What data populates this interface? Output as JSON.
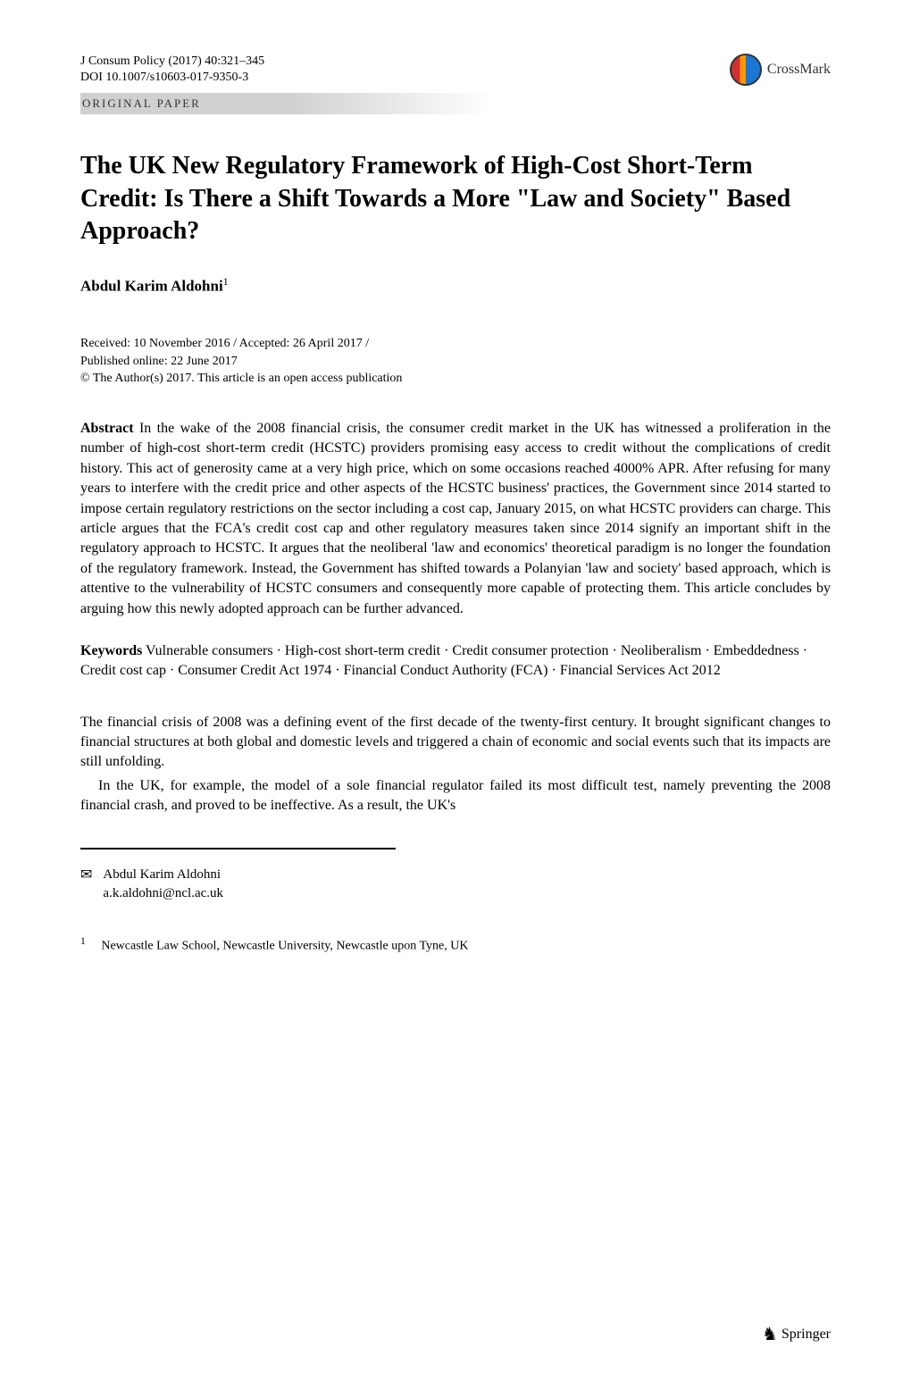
{
  "header": {
    "journal_line": "J Consum Policy (2017) 40:321–345",
    "doi_line": "DOI 10.1007/s10603-017-9350-3",
    "crossmark_label": "CrossMark"
  },
  "section_label": "ORIGINAL PAPER",
  "title": "The UK New Regulatory Framework of High-Cost Short-Term Credit: Is There a Shift Towards a More \"Law and Society\" Based Approach?",
  "author": {
    "name": "Abdul Karim Aldohni",
    "sup": "1"
  },
  "dates": {
    "received_accepted": "Received: 10 November 2016 / Accepted: 26 April 2017 /",
    "published": "Published online: 22 June 2017",
    "copyright": "© The Author(s) 2017. This article is an open access publication"
  },
  "abstract": {
    "label": "Abstract",
    "text": "In the wake of the 2008 financial crisis, the consumer credit market in the UK has witnessed a proliferation in the number of high-cost short-term credit (HCSTC) providers promising easy access to credit without the complications of credit history. This act of generosity came at a very high price, which on some occasions reached 4000% APR. After refusing for many years to interfere with the credit price and other aspects of the HCSTC business' practices, the Government since 2014 started to impose certain regulatory restrictions on the sector including a cost cap, January 2015, on what HCSTC providers can charge. This article argues that the FCA's credit cost cap and other regulatory measures taken since 2014 signify an important shift in the regulatory approach to HCSTC. It argues that the neoliberal 'law and economics' theoretical paradigm is no longer the foundation of the regulatory framework. Instead, the Government has shifted towards a Polanyian 'law and society' based approach, which is attentive to the vulnerability of HCSTC consumers and consequently more capable of protecting them. This article concludes by arguing how this newly adopted approach can be further advanced."
  },
  "keywords": {
    "label": "Keywords",
    "text": "Vulnerable consumers · High-cost short-term credit · Credit consumer protection · Neoliberalism · Embeddedness · Credit cost cap · Consumer Credit Act 1974 · Financial Conduct Authority (FCA) · Financial Services Act 2012"
  },
  "body": {
    "p1": "The financial crisis of 2008 was a defining event of the first decade of the twenty-first century. It brought significant changes to financial structures at both global and domestic levels and triggered a chain of economic and social events such that its impacts are still unfolding.",
    "p2": "In the UK, for example, the model of a sole financial regulator failed its most difficult test, namely preventing the 2008 financial crash, and proved to be ineffective. As a result, the UK's"
  },
  "corresponding": {
    "name": "Abdul Karim Aldohni",
    "email": "a.k.aldohni@ncl.ac.uk"
  },
  "affiliation": {
    "num": "1",
    "text": "Newcastle Law School, Newcastle University, Newcastle upon Tyne, UK"
  },
  "footer": {
    "publisher": "Springer"
  },
  "colors": {
    "text": "#000000",
    "bar_gray": "#d0d0d0",
    "background": "#ffffff"
  }
}
